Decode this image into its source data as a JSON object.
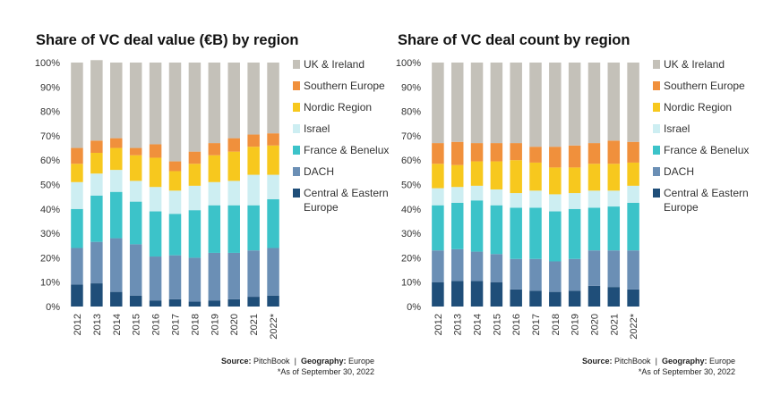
{
  "series_colors": {
    "Central & Eastern Europe": "#1f4e79",
    "DACH": "#6b8fb5",
    "France & Benelux": "#3cc3c9",
    "Israel": "#cdeef2",
    "Nordic Region": "#f7c81e",
    "Southern Europe": "#f0903c",
    "UK & Ireland": "#c4c1b9"
  },
  "legend": [
    "UK & Ireland",
    "Southern Europe",
    "Nordic Region",
    "Israel",
    "France & Benelux",
    "DACH",
    "Central & Eastern\nEurope"
  ],
  "footer": {
    "source_label": "Source:",
    "source_value": "PitchBook",
    "geography_label": "Geography:",
    "geography_value": "Europe",
    "note": "*As of September 30, 2022"
  },
  "chart_data": [
    {
      "type": "bar",
      "stacked": true,
      "title": "Share of VC deal value (€B) by region",
      "categories": [
        "2012",
        "2013",
        "2014",
        "2015",
        "2016",
        "2017",
        "2018",
        "2019",
        "2020",
        "2021",
        "2022*"
      ],
      "ylim": [
        0,
        100
      ],
      "y_ticks": [
        "0%",
        "10%",
        "20%",
        "30%",
        "40%",
        "50%",
        "60%",
        "70%",
        "80%",
        "90%",
        "100%"
      ],
      "series": [
        {
          "name": "Central & Eastern Europe",
          "values": [
            9,
            9.5,
            6,
            4.5,
            2.5,
            3,
            2,
            2.5,
            3,
            4,
            4.5
          ]
        },
        {
          "name": "DACH",
          "values": [
            15,
            17,
            22,
            21,
            18,
            18,
            18,
            19.5,
            19,
            19,
            19.5
          ]
        },
        {
          "name": "France & Benelux",
          "values": [
            16,
            19,
            19,
            17.5,
            18.5,
            17,
            19.5,
            19.5,
            19.5,
            18.5,
            20
          ]
        },
        {
          "name": "Israel",
          "values": [
            11,
            9,
            9,
            8.5,
            10,
            9.5,
            10,
            9.5,
            10,
            12.5,
            10
          ]
        },
        {
          "name": "Nordic Region",
          "values": [
            7.5,
            8.5,
            9,
            10.5,
            12,
            8,
            9,
            11,
            12,
            11.5,
            12
          ]
        },
        {
          "name": "Southern Europe",
          "values": [
            6.5,
            5,
            4,
            3,
            5.5,
            4,
            5,
            5,
            5.5,
            5,
            5
          ]
        },
        {
          "name": "UK & Ireland",
          "values": [
            35,
            33,
            31,
            35,
            33.5,
            40.5,
            36.5,
            33,
            31,
            29.5,
            29
          ]
        }
      ]
    },
    {
      "type": "bar",
      "stacked": true,
      "title": "Share of VC deal count by region",
      "categories": [
        "2012",
        "2013",
        "2014",
        "2015",
        "2016",
        "2017",
        "2018",
        "2019",
        "2020",
        "2021",
        "2022*"
      ],
      "ylim": [
        0,
        100
      ],
      "y_ticks": [
        "0%",
        "10%",
        "20%",
        "30%",
        "40%",
        "50%",
        "60%",
        "70%",
        "80%",
        "90%",
        "100%"
      ],
      "series": [
        {
          "name": "Central & Eastern Europe",
          "values": [
            10,
            10.5,
            10.5,
            10,
            7,
            6.5,
            6,
            6.5,
            8.5,
            8,
            7
          ]
        },
        {
          "name": "DACH",
          "values": [
            13,
            13,
            12,
            11.5,
            12.5,
            13,
            12.5,
            13,
            14.5,
            15,
            16
          ]
        },
        {
          "name": "France & Benelux",
          "values": [
            18.5,
            19,
            21,
            20,
            21,
            21,
            20.5,
            20.5,
            17.5,
            18,
            19.5
          ]
        },
        {
          "name": "Israel",
          "values": [
            7,
            6.5,
            6,
            6.5,
            6,
            7,
            7,
            6.5,
            7,
            6.5,
            7
          ]
        },
        {
          "name": "Nordic Region",
          "values": [
            10,
            9,
            10,
            11.5,
            13.5,
            11.5,
            11,
            10.5,
            11,
            11,
            9.5
          ]
        },
        {
          "name": "Southern Europe",
          "values": [
            8.5,
            9.5,
            7.5,
            7.5,
            7,
            6.5,
            8.5,
            9,
            8.5,
            9.5,
            8.5
          ]
        },
        {
          "name": "UK & Ireland",
          "values": [
            33,
            32.5,
            33,
            33,
            33,
            34.5,
            34.5,
            34,
            33,
            32,
            32.5
          ]
        }
      ]
    }
  ]
}
